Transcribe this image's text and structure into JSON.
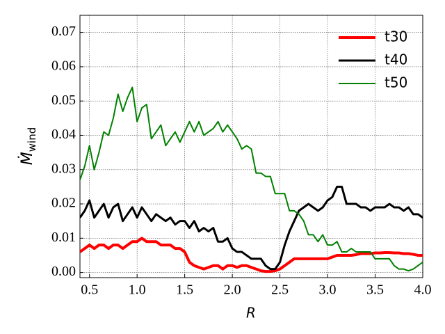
{
  "chart_data": {
    "type": "line",
    "xlabel": "R",
    "ylabel": {
      "main": "Ṁ",
      "sub": "wind"
    },
    "xlim": [
      0.4,
      4.0
    ],
    "ylim": [
      -0.0015,
      0.075
    ],
    "xticks": [
      {
        "value": 0.5,
        "label": "0.5"
      },
      {
        "value": 1,
        "label": "1.0"
      },
      {
        "value": 1.5,
        "label": "1.5"
      },
      {
        "value": 2,
        "label": "2.0"
      },
      {
        "value": 2.5,
        "label": "2.5"
      },
      {
        "value": 3,
        "label": "3.0"
      },
      {
        "value": 3.5,
        "label": "3.5"
      },
      {
        "value": 4,
        "label": "4.0"
      }
    ],
    "yticks": [
      {
        "value": 0,
        "label": "0.00"
      },
      {
        "value": 0.01,
        "label": "0.01"
      },
      {
        "value": 0.02,
        "label": "0.02"
      },
      {
        "value": 0.03,
        "label": "0.03"
      },
      {
        "value": 0.04,
        "label": "0.04"
      },
      {
        "value": 0.05,
        "label": "0.05"
      },
      {
        "value": 0.06,
        "label": "0.06"
      },
      {
        "value": 0.07,
        "label": "0.07"
      }
    ],
    "grid": true,
    "legend": "upper right",
    "x": [
      0.4,
      0.45,
      0.5,
      0.55,
      0.6,
      0.65,
      0.7,
      0.75,
      0.8,
      0.85,
      0.9,
      0.95,
      1.0,
      1.05,
      1.1,
      1.15,
      1.2,
      1.25,
      1.3,
      1.35,
      1.4,
      1.45,
      1.5,
      1.55,
      1.6,
      1.65,
      1.7,
      1.75,
      1.8,
      1.85,
      1.9,
      1.95,
      2.0,
      2.05,
      2.1,
      2.15,
      2.2,
      2.25,
      2.3,
      2.35,
      2.4,
      2.45,
      2.5,
      2.55,
      2.6,
      2.65,
      2.7,
      2.75,
      2.8,
      2.85,
      2.9,
      2.95,
      3.0,
      3.05,
      3.1,
      3.15,
      3.2,
      3.25,
      3.3,
      3.35,
      3.4,
      3.45,
      3.5,
      3.55,
      3.6,
      3.65,
      3.7,
      3.75,
      3.8,
      3.85,
      3.9,
      3.95,
      4.0
    ],
    "series": [
      {
        "name": "t30",
        "color": "#ff0000",
        "width": 4,
        "values": [
          0.006,
          0.007,
          0.008,
          0.007,
          0.008,
          0.008,
          0.007,
          0.008,
          0.008,
          0.007,
          0.008,
          0.009,
          0.009,
          0.01,
          0.009,
          0.009,
          0.009,
          0.008,
          0.008,
          0.008,
          0.007,
          0.007,
          0.006,
          0.003,
          0.002,
          0.0015,
          0.001,
          0.0015,
          0.002,
          0.002,
          0.001,
          0.002,
          0.002,
          0.0015,
          0.002,
          0.002,
          0.0015,
          0.001,
          0.0005,
          0.0003,
          0.0003,
          0.0005,
          0.001,
          0.002,
          0.003,
          0.004,
          0.004,
          0.004,
          0.004,
          0.004,
          0.004,
          0.004,
          0.004,
          0.0045,
          0.005,
          0.005,
          0.005,
          0.005,
          0.0052,
          0.0055,
          0.0055,
          0.0055,
          0.0057,
          0.0057,
          0.0058,
          0.0058,
          0.0057,
          0.0057,
          0.0055,
          0.0055,
          0.0053,
          0.005,
          0.005
        ]
      },
      {
        "name": "t40",
        "color": "#000000",
        "width": 3,
        "values": [
          0.016,
          0.018,
          0.021,
          0.016,
          0.018,
          0.02,
          0.016,
          0.019,
          0.02,
          0.015,
          0.017,
          0.019,
          0.016,
          0.019,
          0.017,
          0.015,
          0.017,
          0.016,
          0.015,
          0.016,
          0.014,
          0.015,
          0.015,
          0.013,
          0.015,
          0.012,
          0.013,
          0.012,
          0.013,
          0.009,
          0.009,
          0.01,
          0.007,
          0.006,
          0.006,
          0.005,
          0.004,
          0.004,
          0.004,
          0.002,
          0.001,
          0.001,
          0.003,
          0.008,
          0.012,
          0.015,
          0.018,
          0.019,
          0.02,
          0.019,
          0.018,
          0.019,
          0.021,
          0.022,
          0.025,
          0.025,
          0.02,
          0.02,
          0.02,
          0.019,
          0.019,
          0.018,
          0.019,
          0.019,
          0.019,
          0.02,
          0.019,
          0.019,
          0.018,
          0.019,
          0.017,
          0.017,
          0.016
        ]
      },
      {
        "name": "t50",
        "color": "#008000",
        "width": 2,
        "values": [
          0.027,
          0.031,
          0.037,
          0.03,
          0.035,
          0.041,
          0.04,
          0.045,
          0.052,
          0.047,
          0.051,
          0.054,
          0.044,
          0.048,
          0.049,
          0.039,
          0.041,
          0.043,
          0.037,
          0.039,
          0.041,
          0.038,
          0.041,
          0.044,
          0.041,
          0.044,
          0.04,
          0.041,
          0.042,
          0.044,
          0.041,
          0.043,
          0.041,
          0.039,
          0.036,
          0.037,
          0.036,
          0.029,
          0.029,
          0.028,
          0.028,
          0.023,
          0.023,
          0.023,
          0.018,
          0.018,
          0.017,
          0.015,
          0.011,
          0.011,
          0.009,
          0.011,
          0.008,
          0.008,
          0.009,
          0.006,
          0.006,
          0.007,
          0.006,
          0.006,
          0.006,
          0.006,
          0.004,
          0.004,
          0.004,
          0.004,
          0.002,
          0.001,
          0.001,
          0.0005,
          0.001,
          0.002,
          0.003
        ]
      }
    ]
  }
}
